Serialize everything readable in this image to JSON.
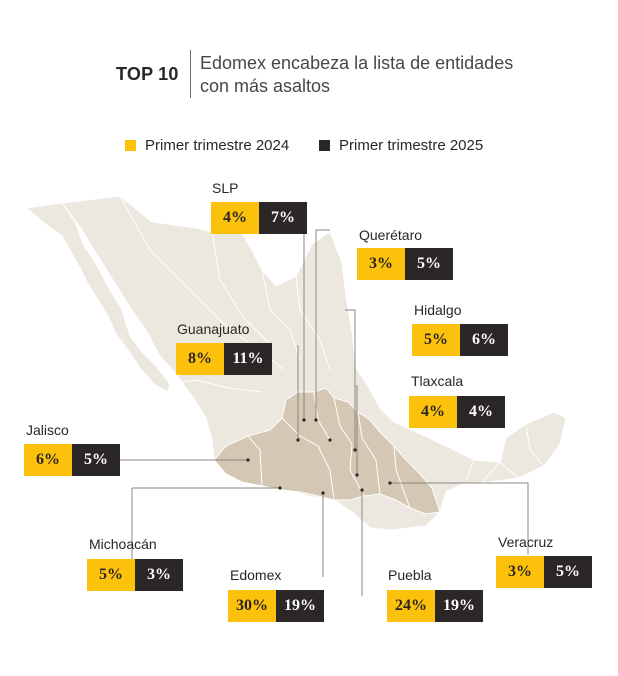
{
  "header": {
    "top_label": "TOP 10",
    "title": "Edomex encabeza la lista de entidades con más asaltos"
  },
  "legend": {
    "items": [
      {
        "label": "Primer trimestre 2024",
        "color": "#fcc10b"
      },
      {
        "label": "Primer trimestre 2025",
        "color": "#2b2726"
      }
    ]
  },
  "colors": {
    "map_base": "#ece7df",
    "map_highlight": "#d4c7b3",
    "border": "#ffffff",
    "leader_line": "#8c8782"
  },
  "states": {
    "slp": {
      "name": "SLP",
      "y2024": "4%",
      "y2025": "7%"
    },
    "queretaro": {
      "name": "Querétaro",
      "y2024": "3%",
      "y2025": "5%"
    },
    "hidalgo": {
      "name": "Hidalgo",
      "y2024": "5%",
      "y2025": "6%"
    },
    "guanajuato": {
      "name": "Guanajuato",
      "y2024": "8%",
      "y2025": "11%"
    },
    "tlaxcala": {
      "name": "Tlaxcala",
      "y2024": "4%",
      "y2025": "4%"
    },
    "jalisco": {
      "name": "Jalisco",
      "y2024": "6%",
      "y2025": "5%"
    },
    "michoacan": {
      "name": "Michoacán",
      "y2024": "5%",
      "y2025": "3%"
    },
    "veracruz": {
      "name": "Veracruz",
      "y2024": "3%",
      "y2025": "5%"
    },
    "edomex": {
      "name": "Edomex",
      "y2024": "30%",
      "y2025": "19%"
    },
    "puebla": {
      "name": "Puebla",
      "y2024": "24%",
      "y2025": "19%"
    }
  }
}
